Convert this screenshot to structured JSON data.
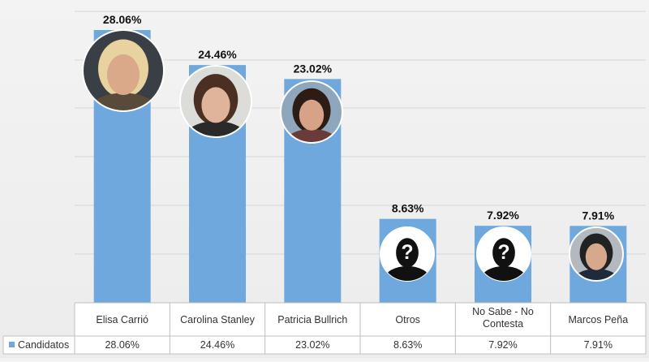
{
  "chart_data": {
    "type": "bar",
    "categories": [
      "Elisa Carrió",
      "Carolina Stanley",
      "Patricia Bullrich",
      "Otros",
      "No Sabe - No Contesta",
      "Marcos Peña"
    ],
    "category_lines": [
      [
        "Elisa Carrió"
      ],
      [
        "Carolina Stanley"
      ],
      [
        "Patricia Bullrich"
      ],
      [
        "Otros"
      ],
      [
        "No Sabe - No",
        "Contesta"
      ],
      [
        "Marcos Peña"
      ]
    ],
    "series": [
      {
        "name": "Candidatos",
        "values": [
          28.06,
          24.46,
          23.02,
          8.63,
          7.92,
          7.91
        ],
        "labels": [
          "28.06%",
          "24.46%",
          "23.02%",
          "8.63%",
          "7.92%",
          "7.91%"
        ]
      }
    ],
    "ylim": [
      0,
      30
    ],
    "grid": true,
    "legend": "data-table",
    "bar_color": "#6fa8dc",
    "avatars": [
      "photo-elisa-carrio-icon",
      "photo-carolina-stanley-icon",
      "photo-patricia-bullrich-icon",
      "unknown-person-icon",
      "unknown-person-icon",
      "photo-marcos-pena-icon"
    ]
  }
}
